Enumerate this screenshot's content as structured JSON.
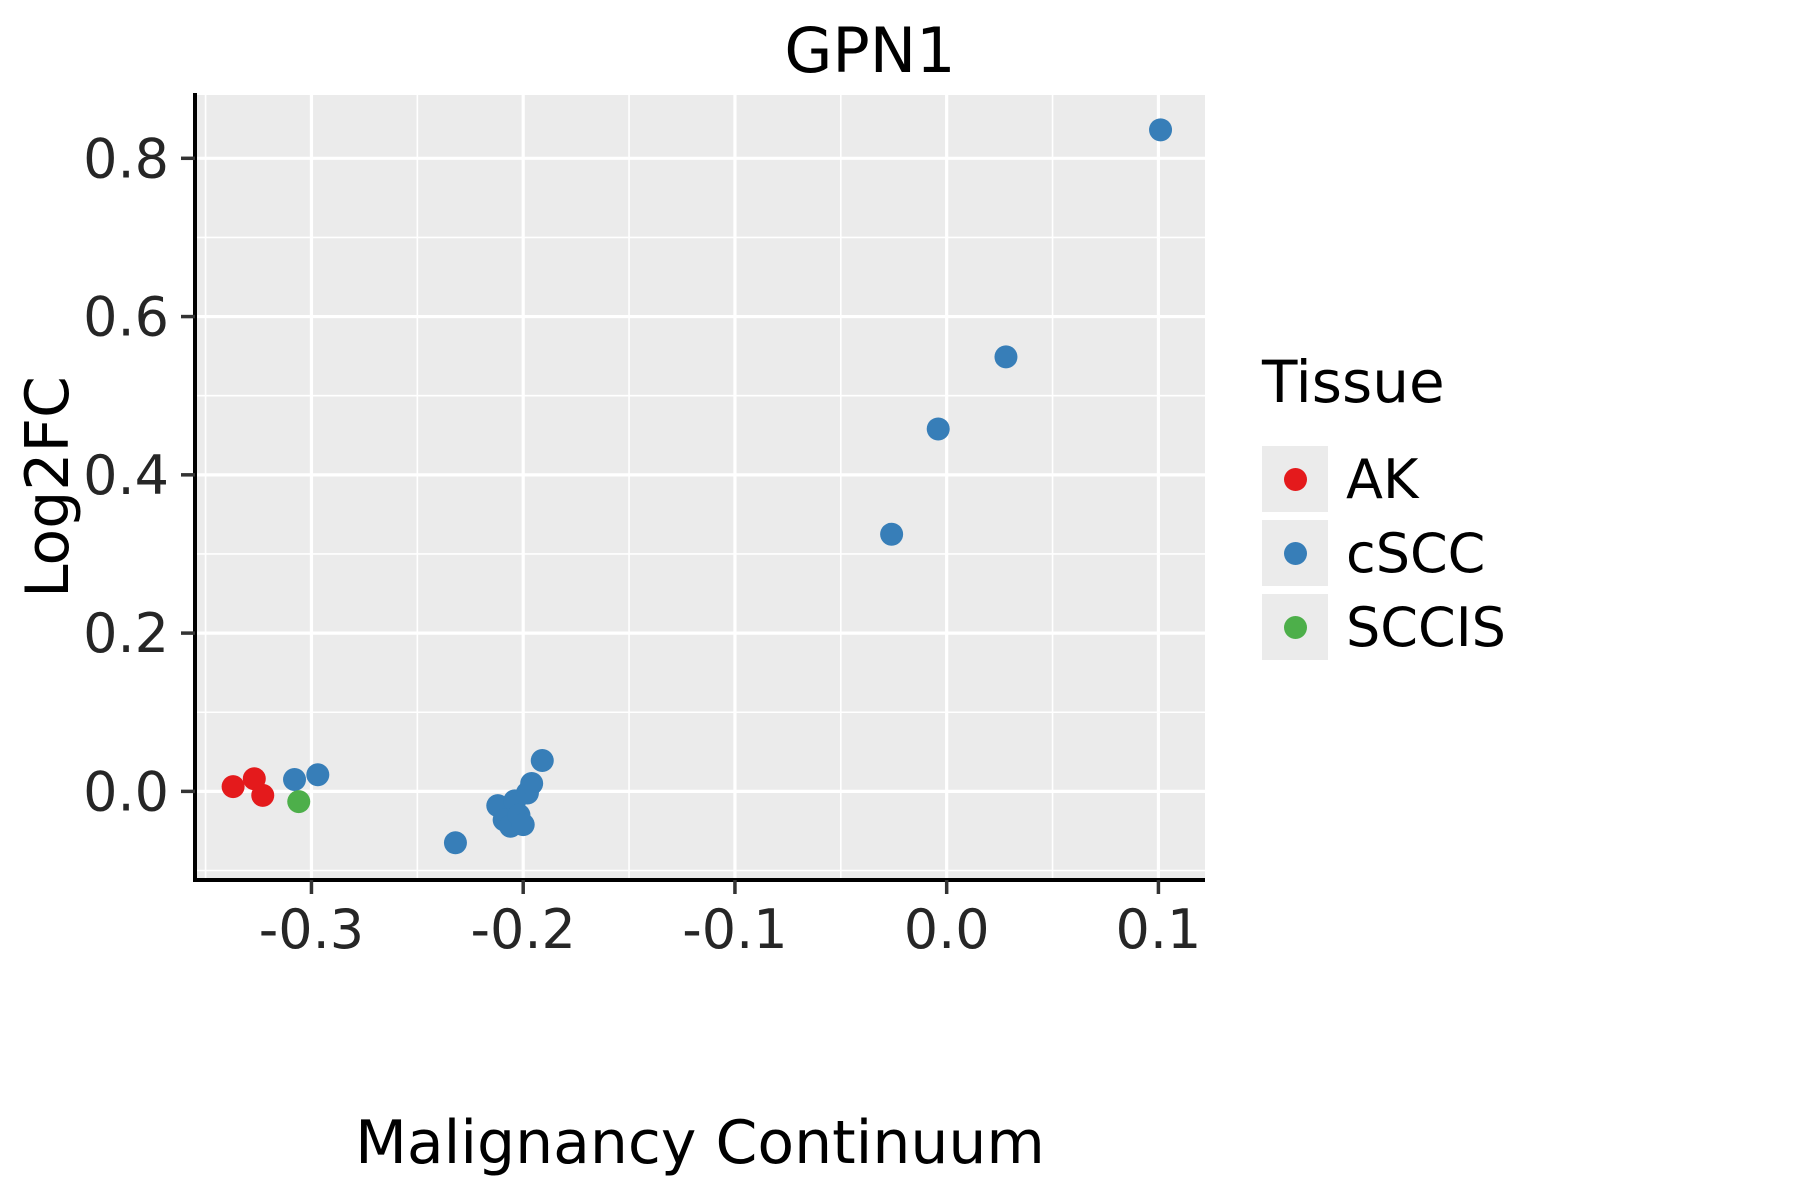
{
  "title": "GPN1",
  "axes": {
    "xlabel": "Malignancy Continuum",
    "ylabel": "Log2FC"
  },
  "legend": {
    "title": "Tissue",
    "items": [
      {
        "label": "AK",
        "color": "#E41A1C"
      },
      {
        "label": "cSCC",
        "color": "#377EB8"
      },
      {
        "label": "SCCIS",
        "color": "#4DAF4A"
      }
    ]
  },
  "chart_data": {
    "type": "scatter",
    "title": "GPN1",
    "xlabel": "Malignancy Continuum",
    "ylabel": "Log2FC",
    "xlim": [
      -0.355,
      0.122
    ],
    "ylim": [
      -0.112,
      0.88
    ],
    "grid": true,
    "legend_position": "right",
    "panel_bg": "#EBEBEB",
    "grid_color": "#FFFFFF",
    "x_ticks": {
      "values": [
        -0.3,
        -0.2,
        -0.1,
        0.0,
        0.1
      ],
      "labels": [
        "-0.3",
        "-0.2",
        "-0.1",
        "0.0",
        "0.1"
      ]
    },
    "y_ticks": {
      "values": [
        0.0,
        0.2,
        0.4,
        0.6,
        0.8
      ],
      "labels": [
        "0.0",
        "0.2",
        "0.4",
        "0.6",
        "0.8"
      ]
    },
    "series": [
      {
        "name": "AK",
        "color": "#E41A1C",
        "points": [
          [
            -0.337,
            0.006
          ],
          [
            -0.327,
            0.016
          ],
          [
            -0.323,
            -0.005
          ]
        ]
      },
      {
        "name": "cSCC",
        "color": "#377EB8",
        "points": [
          [
            -0.308,
            0.015
          ],
          [
            -0.297,
            0.021
          ],
          [
            -0.232,
            -0.065
          ],
          [
            -0.212,
            -0.018
          ],
          [
            -0.209,
            -0.036
          ],
          [
            -0.206,
            -0.044
          ],
          [
            -0.204,
            -0.012
          ],
          [
            -0.202,
            -0.03
          ],
          [
            -0.2,
            -0.042
          ],
          [
            -0.198,
            -0.002
          ],
          [
            -0.196,
            0.01
          ],
          [
            -0.191,
            0.039
          ],
          [
            -0.026,
            0.325
          ],
          [
            -0.004,
            0.458
          ],
          [
            0.028,
            0.549
          ],
          [
            0.101,
            0.836
          ]
        ]
      },
      {
        "name": "SCCIS",
        "color": "#4DAF4A",
        "points": [
          [
            -0.306,
            -0.013
          ]
        ]
      }
    ]
  }
}
